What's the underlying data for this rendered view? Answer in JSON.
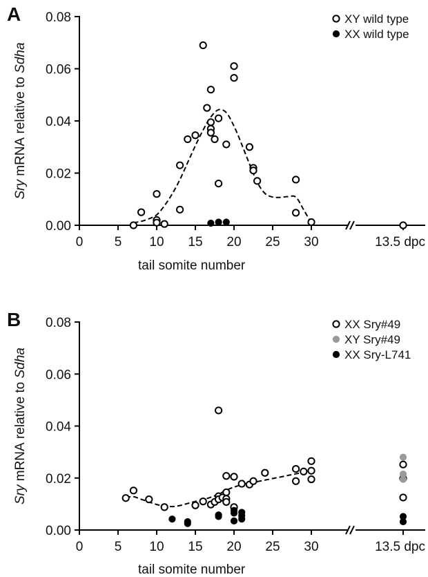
{
  "chart_data": [
    {
      "type": "scatter",
      "panel_label": "A",
      "ylabel_italic_1": "Sry",
      "ylabel_plain": " mRNA relative to ",
      "ylabel_italic_2": "Sdha",
      "xlabel": "tail somite number",
      "ylim": [
        0,
        0.08
      ],
      "xlim": [
        0,
        30
      ],
      "xticks": [
        "0",
        "5",
        "10",
        "15",
        "20",
        "25",
        "30"
      ],
      "yticks": [
        "0.00",
        "0.02",
        "0.04",
        "0.06",
        "0.08"
      ],
      "extra_x_label": "13.5 dpc",
      "legend_position": "top-right",
      "series": [
        {
          "name": "XY wild type",
          "marker": "open",
          "color": "#000000",
          "points": [
            [
              7,
              0.0
            ],
            [
              8,
              0.005
            ],
            [
              10,
              0.012
            ],
            [
              10,
              0.002
            ],
            [
              10,
              0.001
            ],
            [
              11,
              0.0005
            ],
            [
              13,
              0.023
            ],
            [
              13,
              0.006
            ],
            [
              14,
              0.033
            ],
            [
              15,
              0.0345
            ],
            [
              16,
              0.069
            ],
            [
              16.5,
              0.045
            ],
            [
              17,
              0.052
            ],
            [
              17,
              0.0395
            ],
            [
              17,
              0.037
            ],
            [
              17,
              0.0355
            ],
            [
              17.5,
              0.033
            ],
            [
              18,
              0.041
            ],
            [
              18,
              0.016
            ],
            [
              19,
              0.031
            ],
            [
              20,
              0.061
            ],
            [
              20,
              0.0565
            ],
            [
              22,
              0.03
            ],
            [
              22.5,
              0.022
            ],
            [
              22.5,
              0.021
            ],
            [
              23,
              0.017
            ],
            [
              28,
              0.0175
            ],
            [
              28,
              0.0048
            ],
            [
              30,
              0.0012
            ]
          ],
          "dpc_points": [
            0.0
          ]
        },
        {
          "name": "XX wild type",
          "marker": "filled",
          "color": "#000000",
          "points": [
            [
              17,
              0.0008
            ],
            [
              18,
              0.0012
            ],
            [
              19,
              0.0012
            ]
          ],
          "dpc_points": []
        }
      ],
      "fit_curve": [
        [
          7,
          0.001
        ],
        [
          8,
          0.0015
        ],
        [
          9,
          0.0025
        ],
        [
          10,
          0.004
        ],
        [
          11,
          0.0075
        ],
        [
          12,
          0.012
        ],
        [
          13,
          0.0175
        ],
        [
          14,
          0.024
        ],
        [
          15,
          0.0305
        ],
        [
          16,
          0.0365
        ],
        [
          17,
          0.0415
        ],
        [
          18,
          0.0443
        ],
        [
          19,
          0.0432
        ],
        [
          20,
          0.038
        ],
        [
          21,
          0.031
        ],
        [
          22,
          0.0235
        ],
        [
          23,
          0.0165
        ],
        [
          24,
          0.0122
        ],
        [
          25,
          0.0108
        ],
        [
          26,
          0.0107
        ],
        [
          27,
          0.011
        ],
        [
          28,
          0.0108
        ],
        [
          29,
          0.006
        ],
        [
          30,
          0.0008
        ]
      ]
    },
    {
      "type": "scatter",
      "panel_label": "B",
      "ylabel_italic_1": "Sry",
      "ylabel_plain": " mRNA relative to ",
      "ylabel_italic_2": "Sdha",
      "xlabel": "tail somite number",
      "ylim": [
        0,
        0.08
      ],
      "xlim": [
        0,
        30
      ],
      "xticks": [
        "0",
        "5",
        "10",
        "15",
        "20",
        "25",
        "30"
      ],
      "yticks": [
        "0.00",
        "0.02",
        "0.04",
        "0.06",
        "0.08"
      ],
      "extra_x_label": "13.5 dpc",
      "legend_position": "top-right",
      "series": [
        {
          "name": "XX Sry#49",
          "marker": "open",
          "color": "#000000",
          "points": [
            [
              6,
              0.0123
            ],
            [
              7,
              0.0152
            ],
            [
              9,
              0.0118
            ],
            [
              11,
              0.0088
            ],
            [
              15,
              0.0095
            ],
            [
              16,
              0.011
            ],
            [
              17,
              0.0098
            ],
            [
              17.5,
              0.0108
            ],
            [
              18,
              0.046
            ],
            [
              18,
              0.013
            ],
            [
              18,
              0.0118
            ],
            [
              18.5,
              0.0125
            ],
            [
              19,
              0.0208
            ],
            [
              19,
              0.0145
            ],
            [
              19,
              0.012
            ],
            [
              19,
              0.0108
            ],
            [
              20,
              0.0205
            ],
            [
              20,
              0.0088
            ],
            [
              21,
              0.0178
            ],
            [
              22,
              0.0175
            ],
            [
              22.5,
              0.0188
            ],
            [
              24,
              0.022
            ],
            [
              28,
              0.0235
            ],
            [
              28,
              0.0188
            ],
            [
              29,
              0.0225
            ],
            [
              30,
              0.0265
            ],
            [
              30,
              0.0228
            ],
            [
              30,
              0.0195
            ]
          ],
          "dpc_points": [
            0.0252,
            0.0198,
            0.0125
          ]
        },
        {
          "name": "XY Sry#49",
          "marker": "filled",
          "color": "#999999",
          "points": [],
          "dpc_points": [
            0.028,
            0.0215,
            0.0195
          ]
        },
        {
          "name": "XX Sry-L741",
          "marker": "filled",
          "color": "#000000",
          "points": [
            [
              12,
              0.0042
            ],
            [
              14,
              0.0032
            ],
            [
              14,
              0.0025
            ],
            [
              18,
              0.0058
            ],
            [
              18,
              0.0052
            ],
            [
              20,
              0.0075
            ],
            [
              20,
              0.0065
            ],
            [
              20,
              0.0035
            ],
            [
              21,
              0.0068
            ],
            [
              21,
              0.0055
            ],
            [
              21,
              0.0042
            ]
          ],
          "dpc_points": [
            0.0052,
            0.0032
          ]
        }
      ],
      "fit_curve": [
        [
          6,
          0.0125
        ],
        [
          7,
          0.0128
        ],
        [
          8,
          0.0118
        ],
        [
          9,
          0.0108
        ],
        [
          10,
          0.0098
        ],
        [
          11,
          0.0092
        ],
        [
          12,
          0.009
        ],
        [
          13,
          0.0094
        ],
        [
          14,
          0.0102
        ],
        [
          15,
          0.011
        ],
        [
          16,
          0.0117
        ],
        [
          17,
          0.0126
        ],
        [
          18,
          0.0138
        ],
        [
          19,
          0.0153
        ],
        [
          20,
          0.0165
        ],
        [
          21,
          0.0174
        ],
        [
          22,
          0.018
        ],
        [
          23,
          0.0186
        ],
        [
          24,
          0.0192
        ],
        [
          25,
          0.0198
        ],
        [
          26,
          0.0204
        ],
        [
          27,
          0.021
        ],
        [
          28,
          0.0216
        ],
        [
          29,
          0.0222
        ],
        [
          30,
          0.023
        ]
      ]
    }
  ]
}
